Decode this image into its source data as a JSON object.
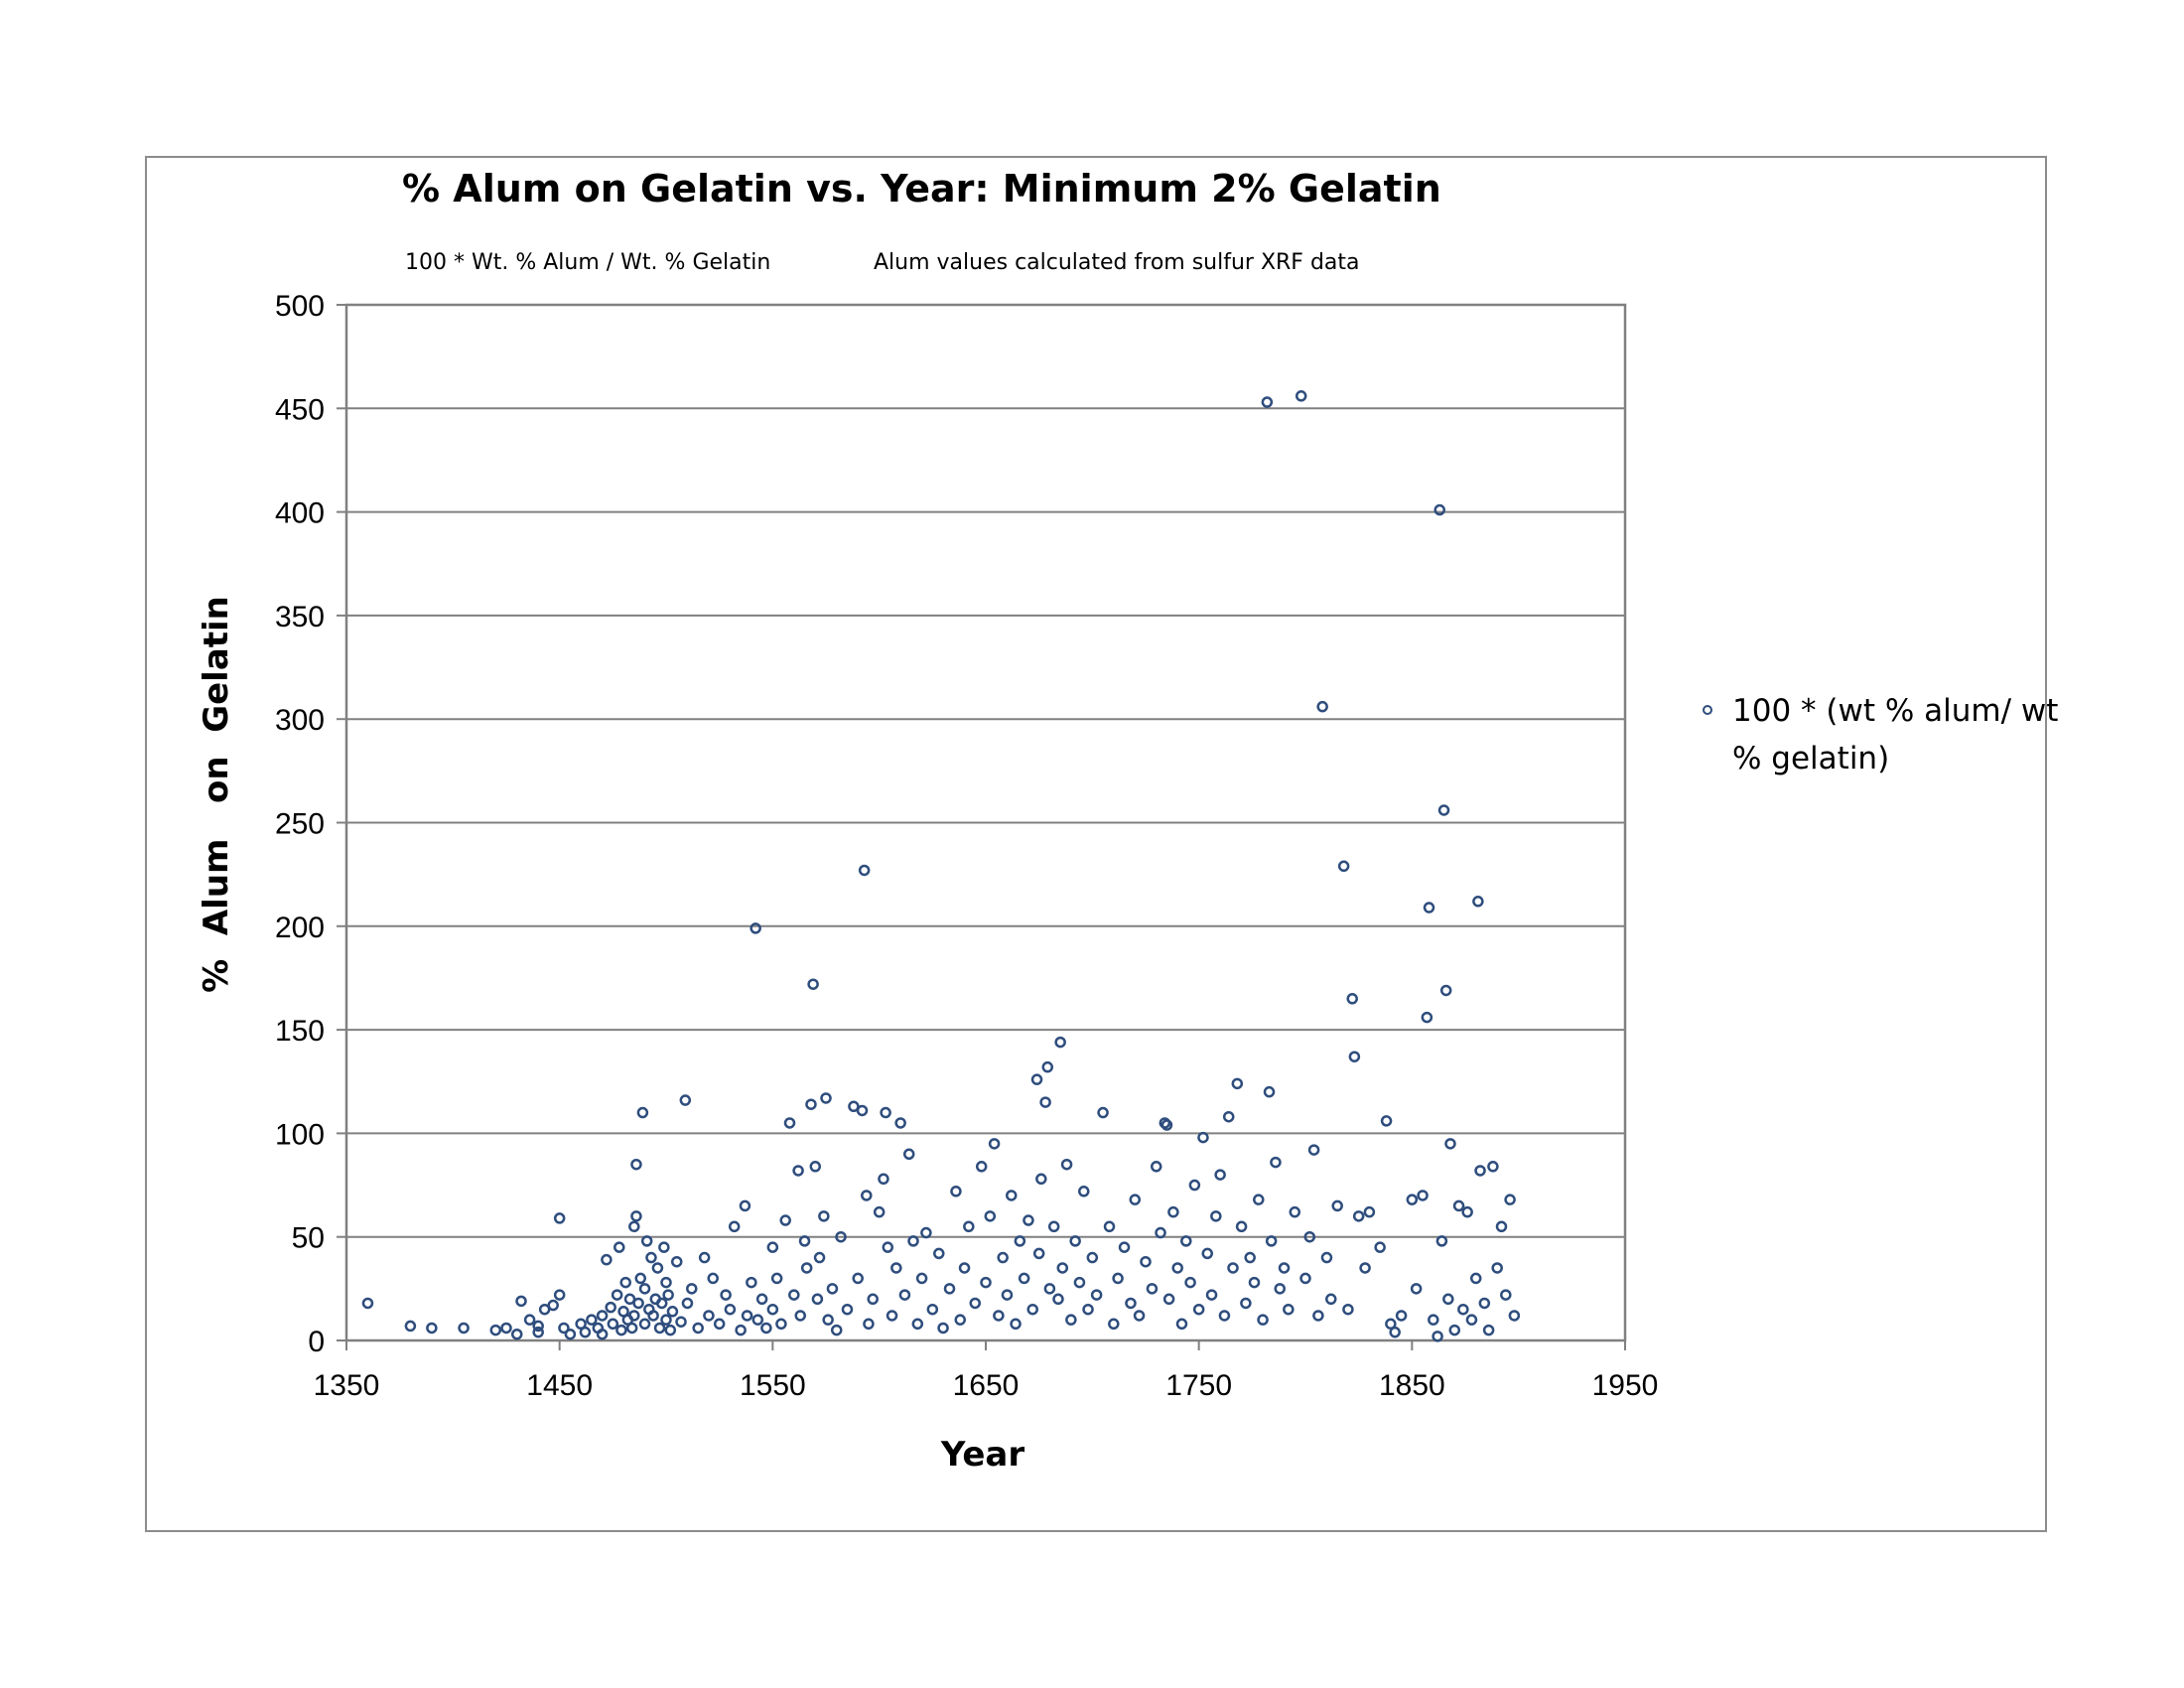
{
  "chart_data": {
    "type": "scatter",
    "title": "%  Alum on Gelatin vs. Year:  Minimum 2% Gelatin",
    "subtitle_left": "100 * Wt. % Alum / Wt. % Gelatin",
    "subtitle_right": "Alum values calculated from sulfur XRF data",
    "xlabel": "Year",
    "ylabel": "%  Alum   on  Gelatin",
    "xlim": [
      1350,
      1950
    ],
    "ylim": [
      0,
      500
    ],
    "xticks": [
      1350,
      1450,
      1550,
      1650,
      1750,
      1850,
      1950
    ],
    "yticks": [
      0,
      50,
      100,
      150,
      200,
      250,
      300,
      350,
      400,
      450,
      500
    ],
    "grid": "horizontal",
    "legend_position": "right",
    "marker_color": "#2e4d7d",
    "series": [
      {
        "name": "100 * (wt % alum/ wt % gelatin)",
        "points": [
          [
            1360,
            18
          ],
          [
            1380,
            7
          ],
          [
            1390,
            6
          ],
          [
            1405,
            6
          ],
          [
            1420,
            5
          ],
          [
            1425,
            6
          ],
          [
            1430,
            3
          ],
          [
            1432,
            19
          ],
          [
            1436,
            10
          ],
          [
            1440,
            4
          ],
          [
            1440,
            7
          ],
          [
            1443,
            15
          ],
          [
            1447,
            17
          ],
          [
            1450,
            59
          ],
          [
            1450,
            22
          ],
          [
            1452,
            6
          ],
          [
            1455,
            3
          ],
          [
            1460,
            8
          ],
          [
            1462,
            4
          ],
          [
            1465,
            10
          ],
          [
            1468,
            6
          ],
          [
            1470,
            12
          ],
          [
            1470,
            3
          ],
          [
            1472,
            39
          ],
          [
            1474,
            16
          ],
          [
            1475,
            8
          ],
          [
            1477,
            22
          ],
          [
            1478,
            45
          ],
          [
            1479,
            5
          ],
          [
            1480,
            14
          ],
          [
            1481,
            28
          ],
          [
            1482,
            10
          ],
          [
            1483,
            20
          ],
          [
            1484,
            6
          ],
          [
            1485,
            12
          ],
          [
            1485,
            55
          ],
          [
            1486,
            60
          ],
          [
            1486,
            85
          ],
          [
            1487,
            18
          ],
          [
            1488,
            30
          ],
          [
            1489,
            110
          ],
          [
            1490,
            8
          ],
          [
            1490,
            25
          ],
          [
            1491,
            48
          ],
          [
            1492,
            15
          ],
          [
            1493,
            40
          ],
          [
            1494,
            12
          ],
          [
            1495,
            20
          ],
          [
            1496,
            35
          ],
          [
            1497,
            6
          ],
          [
            1498,
            18
          ],
          [
            1499,
            45
          ],
          [
            1500,
            10
          ],
          [
            1500,
            28
          ],
          [
            1501,
            22
          ],
          [
            1502,
            5
          ],
          [
            1503,
            14
          ],
          [
            1505,
            38
          ],
          [
            1507,
            9
          ],
          [
            1509,
            116
          ],
          [
            1510,
            18
          ],
          [
            1512,
            25
          ],
          [
            1515,
            6
          ],
          [
            1518,
            40
          ],
          [
            1520,
            12
          ],
          [
            1522,
            30
          ],
          [
            1525,
            8
          ],
          [
            1528,
            22
          ],
          [
            1530,
            15
          ],
          [
            1532,
            55
          ],
          [
            1535,
            5
          ],
          [
            1537,
            65
          ],
          [
            1538,
            12
          ],
          [
            1540,
            28
          ],
          [
            1542,
            199
          ],
          [
            1543,
            10
          ],
          [
            1545,
            20
          ],
          [
            1547,
            6
          ],
          [
            1550,
            15
          ],
          [
            1550,
            45
          ],
          [
            1552,
            30
          ],
          [
            1554,
            8
          ],
          [
            1556,
            58
          ],
          [
            1558,
            105
          ],
          [
            1560,
            22
          ],
          [
            1562,
            82
          ],
          [
            1563,
            12
          ],
          [
            1565,
            48
          ],
          [
            1566,
            35
          ],
          [
            1568,
            114
          ],
          [
            1569,
            172
          ],
          [
            1570,
            84
          ],
          [
            1571,
            20
          ],
          [
            1572,
            40
          ],
          [
            1574,
            60
          ],
          [
            1575,
            117
          ],
          [
            1576,
            10
          ],
          [
            1578,
            25
          ],
          [
            1580,
            5
          ],
          [
            1582,
            50
          ],
          [
            1585,
            15
          ],
          [
            1588,
            113
          ],
          [
            1590,
            30
          ],
          [
            1592,
            111
          ],
          [
            1593,
            227
          ],
          [
            1594,
            70
          ],
          [
            1595,
            8
          ],
          [
            1597,
            20
          ],
          [
            1600,
            62
          ],
          [
            1602,
            78
          ],
          [
            1603,
            110
          ],
          [
            1604,
            45
          ],
          [
            1606,
            12
          ],
          [
            1608,
            35
          ],
          [
            1610,
            105
          ],
          [
            1612,
            22
          ],
          [
            1614,
            90
          ],
          [
            1616,
            48
          ],
          [
            1618,
            8
          ],
          [
            1620,
            30
          ],
          [
            1622,
            52
          ],
          [
            1625,
            15
          ],
          [
            1628,
            42
          ],
          [
            1630,
            6
          ],
          [
            1633,
            25
          ],
          [
            1636,
            72
          ],
          [
            1638,
            10
          ],
          [
            1640,
            35
          ],
          [
            1642,
            55
          ],
          [
            1645,
            18
          ],
          [
            1648,
            84
          ],
          [
            1650,
            28
          ],
          [
            1652,
            60
          ],
          [
            1654,
            95
          ],
          [
            1656,
            12
          ],
          [
            1658,
            40
          ],
          [
            1660,
            22
          ],
          [
            1662,
            70
          ],
          [
            1664,
            8
          ],
          [
            1666,
            48
          ],
          [
            1668,
            30
          ],
          [
            1670,
            58
          ],
          [
            1672,
            15
          ],
          [
            1674,
            126
          ],
          [
            1675,
            42
          ],
          [
            1676,
            78
          ],
          [
            1678,
            115
          ],
          [
            1679,
            132
          ],
          [
            1680,
            25
          ],
          [
            1682,
            55
          ],
          [
            1684,
            20
          ],
          [
            1685,
            144
          ],
          [
            1686,
            35
          ],
          [
            1688,
            85
          ],
          [
            1690,
            10
          ],
          [
            1692,
            48
          ],
          [
            1694,
            28
          ],
          [
            1696,
            72
          ],
          [
            1698,
            15
          ],
          [
            1700,
            40
          ],
          [
            1702,
            22
          ],
          [
            1705,
            110
          ],
          [
            1708,
            55
          ],
          [
            1710,
            8
          ],
          [
            1712,
            30
          ],
          [
            1715,
            45
          ],
          [
            1718,
            18
          ],
          [
            1720,
            68
          ],
          [
            1722,
            12
          ],
          [
            1725,
            38
          ],
          [
            1728,
            25
          ],
          [
            1730,
            84
          ],
          [
            1732,
            52
          ],
          [
            1734,
            105
          ],
          [
            1735,
            104
          ],
          [
            1736,
            20
          ],
          [
            1738,
            62
          ],
          [
            1740,
            35
          ],
          [
            1742,
            8
          ],
          [
            1744,
            48
          ],
          [
            1746,
            28
          ],
          [
            1748,
            75
          ],
          [
            1750,
            15
          ],
          [
            1752,
            98
          ],
          [
            1754,
            42
          ],
          [
            1756,
            22
          ],
          [
            1758,
            60
          ],
          [
            1760,
            80
          ],
          [
            1762,
            12
          ],
          [
            1764,
            108
          ],
          [
            1766,
            35
          ],
          [
            1768,
            124
          ],
          [
            1770,
            55
          ],
          [
            1772,
            18
          ],
          [
            1774,
            40
          ],
          [
            1776,
            28
          ],
          [
            1778,
            68
          ],
          [
            1780,
            10
          ],
          [
            1782,
            453
          ],
          [
            1783,
            120
          ],
          [
            1784,
            48
          ],
          [
            1786,
            86
          ],
          [
            1788,
            25
          ],
          [
            1790,
            35
          ],
          [
            1792,
            15
          ],
          [
            1795,
            62
          ],
          [
            1798,
            456
          ],
          [
            1800,
            30
          ],
          [
            1802,
            50
          ],
          [
            1804,
            92
          ],
          [
            1806,
            12
          ],
          [
            1808,
            306
          ],
          [
            1810,
            40
          ],
          [
            1812,
            20
          ],
          [
            1815,
            65
          ],
          [
            1818,
            229
          ],
          [
            1820,
            15
          ],
          [
            1822,
            165
          ],
          [
            1823,
            137
          ],
          [
            1825,
            60
          ],
          [
            1828,
            35
          ],
          [
            1830,
            62
          ],
          [
            1835,
            45
          ],
          [
            1838,
            106
          ],
          [
            1840,
            8
          ],
          [
            1842,
            4
          ],
          [
            1845,
            12
          ],
          [
            1850,
            68
          ],
          [
            1852,
            25
          ],
          [
            1855,
            70
          ],
          [
            1857,
            156
          ],
          [
            1858,
            209
          ],
          [
            1860,
            10
          ],
          [
            1862,
            2
          ],
          [
            1863,
            401
          ],
          [
            1864,
            48
          ],
          [
            1865,
            256
          ],
          [
            1866,
            169
          ],
          [
            1867,
            20
          ],
          [
            1868,
            95
          ],
          [
            1870,
            5
          ],
          [
            1872,
            65
          ],
          [
            1874,
            15
          ],
          [
            1876,
            62
          ],
          [
            1878,
            10
          ],
          [
            1880,
            30
          ],
          [
            1881,
            212
          ],
          [
            1882,
            82
          ],
          [
            1884,
            18
          ],
          [
            1886,
            5
          ],
          [
            1888,
            84
          ],
          [
            1890,
            35
          ],
          [
            1892,
            55
          ],
          [
            1894,
            22
          ],
          [
            1896,
            68
          ],
          [
            1898,
            12
          ]
        ]
      }
    ]
  }
}
